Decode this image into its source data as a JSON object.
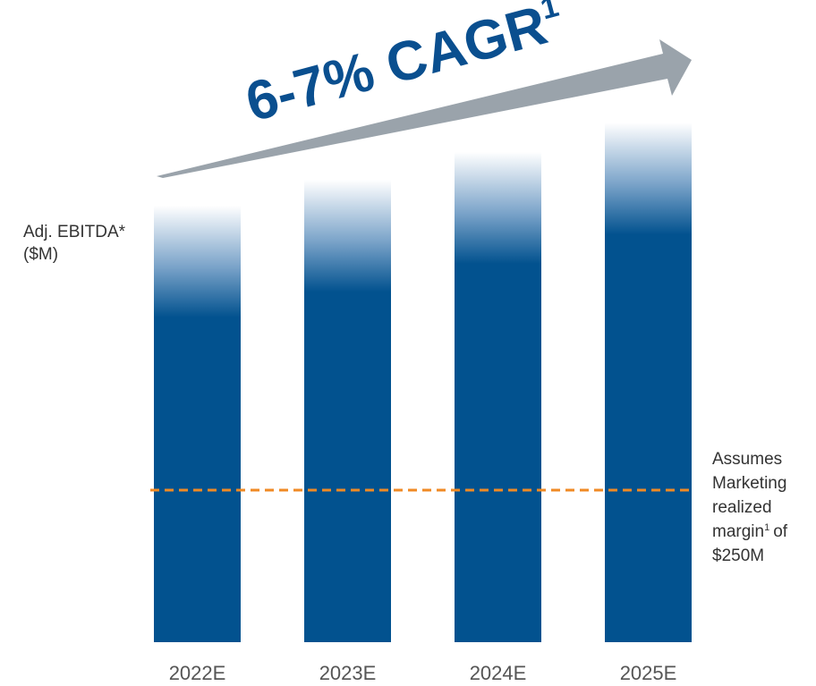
{
  "chart_data": {
    "type": "bar",
    "title": "6-7% CAGR",
    "title_superscript": "1",
    "y_label": [
      "Adj. EBITDA*",
      "($M)"
    ],
    "categories": [
      "2022E",
      "2023E",
      "2024E",
      "2025E"
    ],
    "values": [
      718,
      760,
      806,
      854
    ],
    "color": "#02528f",
    "reference_line": {
      "value": 250,
      "color": "#f08a24",
      "annotation": [
        "Assumes",
        "Marketing",
        "realized",
        "margin",
        "of",
        "$250M"
      ],
      "annotation_superscript": "1"
    }
  }
}
